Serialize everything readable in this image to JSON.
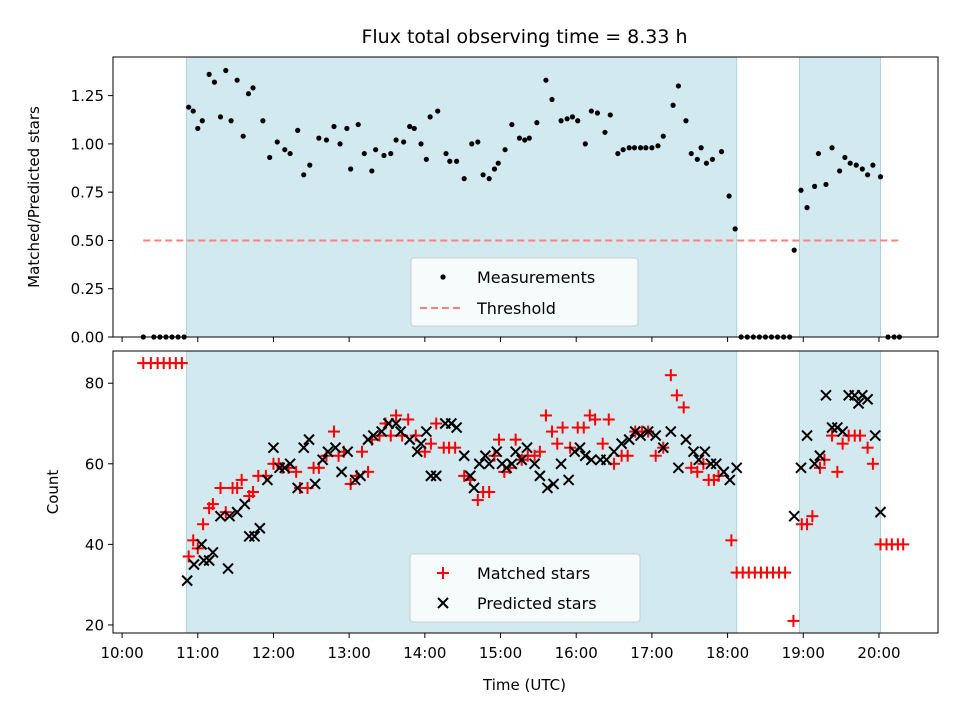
{
  "chart_data": {
    "type": "scatter",
    "title": "Flux total observing time = 8.33 h",
    "xlabel": "Time (UTC)",
    "x_ticks": [
      "10:00",
      "11:00",
      "12:00",
      "13:00",
      "14:00",
      "15:00",
      "16:00",
      "17:00",
      "18:00",
      "19:00",
      "20:00"
    ],
    "xlim_hours": [
      9.88,
      20.78
    ],
    "observing_windows_hours": [
      [
        10.85,
        18.12
      ],
      [
        18.95,
        20.02
      ]
    ],
    "window_color": "#d3e9f0",
    "top": {
      "ylabel": "Matched/Predicted stars",
      "ylim": [
        0,
        1.45
      ],
      "y_ticks": [
        "0.00",
        "0.25",
        "0.50",
        "0.75",
        "1.00",
        "1.25"
      ],
      "threshold": 0.5,
      "threshold_color": "#ff7f7f",
      "legend": {
        "position": "lower center",
        "measurements": "Measurements",
        "threshold": "Threshold"
      },
      "ratio_points": [
        [
          10.28,
          0
        ],
        [
          10.42,
          0
        ],
        [
          10.5,
          0
        ],
        [
          10.58,
          0
        ],
        [
          10.66,
          0
        ],
        [
          10.74,
          0
        ],
        [
          10.82,
          0
        ],
        [
          10.88,
          1.19
        ],
        [
          10.94,
          1.17
        ],
        [
          11.0,
          1.08
        ],
        [
          11.06,
          1.12
        ],
        [
          11.15,
          1.36
        ],
        [
          11.22,
          1.32
        ],
        [
          11.3,
          1.14
        ],
        [
          11.37,
          1.38
        ],
        [
          11.44,
          1.12
        ],
        [
          11.52,
          1.33
        ],
        [
          11.6,
          1.04
        ],
        [
          11.67,
          1.26
        ],
        [
          11.73,
          1.29
        ],
        [
          11.86,
          1.12
        ],
        [
          11.95,
          0.93
        ],
        [
          12.05,
          1.01
        ],
        [
          12.15,
          0.97
        ],
        [
          12.22,
          0.95
        ],
        [
          12.32,
          1.07
        ],
        [
          12.4,
          0.84
        ],
        [
          12.48,
          0.89
        ],
        [
          12.6,
          1.03
        ],
        [
          12.7,
          1.02
        ],
        [
          12.8,
          1.09
        ],
        [
          12.88,
          1.0
        ],
        [
          12.97,
          1.08
        ],
        [
          13.02,
          0.87
        ],
        [
          13.12,
          1.1
        ],
        [
          13.2,
          0.95
        ],
        [
          13.3,
          0.86
        ],
        [
          13.35,
          0.97
        ],
        [
          13.46,
          0.94
        ],
        [
          13.55,
          0.95
        ],
        [
          13.62,
          1.02
        ],
        [
          13.72,
          1.01
        ],
        [
          13.8,
          1.09
        ],
        [
          13.86,
          1.08
        ],
        [
          13.95,
          1.0
        ],
        [
          14.02,
          0.92
        ],
        [
          14.07,
          1.14
        ],
        [
          14.17,
          1.17
        ],
        [
          14.28,
          0.95
        ],
        [
          14.33,
          0.91
        ],
        [
          14.42,
          0.91
        ],
        [
          14.52,
          0.82
        ],
        [
          14.62,
          1.0
        ],
        [
          14.7,
          1.01
        ],
        [
          14.77,
          0.84
        ],
        [
          14.85,
          0.82
        ],
        [
          14.92,
          0.87
        ],
        [
          14.97,
          0.9
        ],
        [
          15.06,
          0.97
        ],
        [
          15.15,
          1.1
        ],
        [
          15.25,
          1.03
        ],
        [
          15.32,
          1.02
        ],
        [
          15.38,
          1.03
        ],
        [
          15.48,
          1.11
        ],
        [
          15.6,
          1.33
        ],
        [
          15.68,
          1.23
        ],
        [
          15.8,
          1.12
        ],
        [
          15.88,
          1.13
        ],
        [
          15.95,
          1.14
        ],
        [
          16.02,
          1.12
        ],
        [
          16.12,
          1.0
        ],
        [
          16.2,
          1.17
        ],
        [
          16.28,
          1.16
        ],
        [
          16.38,
          1.06
        ],
        [
          16.45,
          1.15
        ],
        [
          16.55,
          0.95
        ],
        [
          16.62,
          0.97
        ],
        [
          16.7,
          0.98
        ],
        [
          16.77,
          0.98
        ],
        [
          16.85,
          0.98
        ],
        [
          16.92,
          0.98
        ],
        [
          17.0,
          0.98
        ],
        [
          17.08,
          0.99
        ],
        [
          17.15,
          1.04
        ],
        [
          17.28,
          1.2
        ],
        [
          17.35,
          1.3
        ],
        [
          17.45,
          1.12
        ],
        [
          17.52,
          0.95
        ],
        [
          17.6,
          0.92
        ],
        [
          17.65,
          0.98
        ],
        [
          17.72,
          0.9
        ],
        [
          17.8,
          0.92
        ],
        [
          17.92,
          0.96
        ],
        [
          18.02,
          0.73
        ],
        [
          18.1,
          0.56
        ],
        [
          18.18,
          0
        ],
        [
          18.26,
          0
        ],
        [
          18.34,
          0
        ],
        [
          18.42,
          0
        ],
        [
          18.5,
          0
        ],
        [
          18.58,
          0
        ],
        [
          18.66,
          0
        ],
        [
          18.74,
          0
        ],
        [
          18.82,
          0
        ],
        [
          18.88,
          0.45
        ],
        [
          18.97,
          0.76
        ],
        [
          19.05,
          0.67
        ],
        [
          19.15,
          0.78
        ],
        [
          19.2,
          0.95
        ],
        [
          19.3,
          0.79
        ],
        [
          19.38,
          0.98
        ],
        [
          19.48,
          0.86
        ],
        [
          19.55,
          0.93
        ],
        [
          19.62,
          0.9
        ],
        [
          19.7,
          0.89
        ],
        [
          19.78,
          0.87
        ],
        [
          19.85,
          0.84
        ],
        [
          19.92,
          0.89
        ],
        [
          20.02,
          0.83
        ],
        [
          20.12,
          0
        ],
        [
          20.2,
          0
        ],
        [
          20.27,
          0
        ]
      ]
    },
    "bottom": {
      "ylabel": "Count",
      "ylim": [
        18,
        88
      ],
      "y_ticks": [
        "20",
        "40",
        "60",
        "80"
      ],
      "legend": {
        "position": "lower center",
        "matched": "Matched stars",
        "predicted": "Predicted stars"
      },
      "matched_color": "#ff0000",
      "predicted_color": "#000000",
      "matched_points": [
        [
          10.28,
          85
        ],
        [
          10.38,
          85
        ],
        [
          10.47,
          85
        ],
        [
          10.55,
          85
        ],
        [
          10.63,
          85
        ],
        [
          10.71,
          85
        ],
        [
          10.79,
          85
        ],
        [
          10.88,
          37
        ],
        [
          10.94,
          41
        ],
        [
          11.0,
          39
        ],
        [
          11.07,
          45
        ],
        [
          11.15,
          49
        ],
        [
          11.2,
          50
        ],
        [
          11.3,
          54
        ],
        [
          11.37,
          48
        ],
        [
          11.46,
          54
        ],
        [
          11.52,
          54
        ],
        [
          11.58,
          56
        ],
        [
          11.68,
          52
        ],
        [
          11.73,
          53
        ],
        [
          11.8,
          57
        ],
        [
          11.9,
          57
        ],
        [
          12.0,
          60
        ],
        [
          12.07,
          60
        ],
        [
          12.12,
          59
        ],
        [
          12.2,
          59
        ],
        [
          12.3,
          58
        ],
        [
          12.35,
          54
        ],
        [
          12.45,
          54
        ],
        [
          12.53,
          59
        ],
        [
          12.6,
          59
        ],
        [
          12.7,
          62
        ],
        [
          12.8,
          68
        ],
        [
          12.86,
          62
        ],
        [
          12.93,
          63
        ],
        [
          13.02,
          55
        ],
        [
          13.1,
          57
        ],
        [
          13.17,
          63
        ],
        [
          13.25,
          58
        ],
        [
          13.3,
          66
        ],
        [
          13.4,
          67
        ],
        [
          13.48,
          70
        ],
        [
          13.55,
          67
        ],
        [
          13.62,
          72
        ],
        [
          13.7,
          67
        ],
        [
          13.78,
          71
        ],
        [
          13.88,
          67
        ],
        [
          14.0,
          63
        ],
        [
          14.08,
          65
        ],
        [
          14.15,
          70
        ],
        [
          14.25,
          64
        ],
        [
          14.32,
          64
        ],
        [
          14.4,
          64
        ],
        [
          14.52,
          57
        ],
        [
          14.6,
          56
        ],
        [
          14.7,
          51
        ],
        [
          14.77,
          53
        ],
        [
          14.85,
          53
        ],
        [
          14.92,
          62
        ],
        [
          14.98,
          66
        ],
        [
          15.05,
          58
        ],
        [
          15.12,
          59
        ],
        [
          15.2,
          66
        ],
        [
          15.28,
          61
        ],
        [
          15.36,
          62
        ],
        [
          15.45,
          62
        ],
        [
          15.52,
          63
        ],
        [
          15.6,
          72
        ],
        [
          15.68,
          68
        ],
        [
          15.75,
          65
        ],
        [
          15.82,
          69
        ],
        [
          15.92,
          64
        ],
        [
          16.02,
          69
        ],
        [
          16.1,
          69
        ],
        [
          16.18,
          72
        ],
        [
          16.25,
          71
        ],
        [
          16.35,
          65
        ],
        [
          16.43,
          71
        ],
        [
          16.5,
          60
        ],
        [
          16.6,
          62
        ],
        [
          16.68,
          62
        ],
        [
          16.78,
          68
        ],
        [
          16.87,
          68
        ],
        [
          16.95,
          68
        ],
        [
          17.05,
          62
        ],
        [
          17.15,
          64
        ],
        [
          17.25,
          82
        ],
        [
          17.33,
          77
        ],
        [
          17.42,
          74
        ],
        [
          17.52,
          59
        ],
        [
          17.6,
          58
        ],
        [
          17.68,
          60
        ],
        [
          17.75,
          56
        ],
        [
          17.82,
          56
        ],
        [
          17.88,
          57
        ],
        [
          18.05,
          41
        ],
        [
          18.12,
          33
        ],
        [
          18.2,
          33
        ],
        [
          18.28,
          33
        ],
        [
          18.36,
          33
        ],
        [
          18.44,
          33
        ],
        [
          18.52,
          33
        ],
        [
          18.6,
          33
        ],
        [
          18.68,
          33
        ],
        [
          18.76,
          33
        ],
        [
          18.87,
          21
        ],
        [
          18.98,
          45
        ],
        [
          19.05,
          45
        ],
        [
          19.12,
          47
        ],
        [
          19.22,
          59
        ],
        [
          19.28,
          61
        ],
        [
          19.38,
          67
        ],
        [
          19.45,
          58
        ],
        [
          19.52,
          65
        ],
        [
          19.6,
          67
        ],
        [
          19.68,
          67
        ],
        [
          19.75,
          67
        ],
        [
          19.85,
          64
        ],
        [
          19.92,
          60
        ],
        [
          20.02,
          40
        ],
        [
          20.1,
          40
        ],
        [
          20.17,
          40
        ],
        [
          20.25,
          40
        ],
        [
          20.32,
          40
        ]
      ],
      "predicted_points": [
        [
          10.86,
          31
        ],
        [
          10.95,
          35
        ],
        [
          11.05,
          40
        ],
        [
          11.08,
          36
        ],
        [
          11.15,
          36
        ],
        [
          11.2,
          38
        ],
        [
          11.3,
          47
        ],
        [
          11.4,
          34
        ],
        [
          11.42,
          47
        ],
        [
          11.52,
          48
        ],
        [
          11.62,
          50
        ],
        [
          11.68,
          42
        ],
        [
          11.75,
          42
        ],
        [
          11.82,
          44
        ],
        [
          11.92,
          56
        ],
        [
          12.0,
          64
        ],
        [
          12.08,
          59
        ],
        [
          12.15,
          59
        ],
        [
          12.22,
          60
        ],
        [
          12.32,
          54
        ],
        [
          12.4,
          64
        ],
        [
          12.47,
          66
        ],
        [
          12.55,
          55
        ],
        [
          12.65,
          61
        ],
        [
          12.72,
          63
        ],
        [
          12.82,
          64
        ],
        [
          12.9,
          58
        ],
        [
          12.98,
          63
        ],
        [
          13.08,
          56
        ],
        [
          13.15,
          57
        ],
        [
          13.25,
          66
        ],
        [
          13.32,
          67
        ],
        [
          13.43,
          68
        ],
        [
          13.52,
          70
        ],
        [
          13.62,
          70
        ],
        [
          13.68,
          68
        ],
        [
          13.8,
          66
        ],
        [
          13.9,
          63
        ],
        [
          13.95,
          65
        ],
        [
          14.02,
          68
        ],
        [
          14.08,
          57
        ],
        [
          14.15,
          57
        ],
        [
          14.27,
          70
        ],
        [
          14.35,
          70
        ],
        [
          14.42,
          69
        ],
        [
          14.52,
          62
        ],
        [
          14.6,
          57
        ],
        [
          14.65,
          54
        ],
        [
          14.72,
          60
        ],
        [
          14.8,
          62
        ],
        [
          14.85,
          60
        ],
        [
          14.95,
          63
        ],
        [
          15.02,
          60
        ],
        [
          15.08,
          59
        ],
        [
          15.15,
          60
        ],
        [
          15.2,
          63
        ],
        [
          15.28,
          61
        ],
        [
          15.35,
          64
        ],
        [
          15.45,
          60
        ],
        [
          15.52,
          57
        ],
        [
          15.62,
          54
        ],
        [
          15.7,
          55
        ],
        [
          15.8,
          60
        ],
        [
          15.9,
          56
        ],
        [
          15.98,
          63
        ],
        [
          16.05,
          64
        ],
        [
          16.12,
          62
        ],
        [
          16.2,
          61
        ],
        [
          16.32,
          61
        ],
        [
          16.4,
          61
        ],
        [
          16.5,
          63
        ],
        [
          16.6,
          65
        ],
        [
          16.7,
          66
        ],
        [
          16.78,
          68
        ],
        [
          16.85,
          67
        ],
        [
          16.95,
          68
        ],
        [
          17.05,
          67
        ],
        [
          17.15,
          64
        ],
        [
          17.25,
          68
        ],
        [
          17.35,
          59
        ],
        [
          17.45,
          66
        ],
        [
          17.55,
          63
        ],
        [
          17.62,
          61
        ],
        [
          17.7,
          63
        ],
        [
          17.78,
          60
        ],
        [
          17.85,
          60
        ],
        [
          17.95,
          58
        ],
        [
          18.03,
          56
        ],
        [
          18.12,
          59
        ],
        [
          18.88,
          47
        ],
        [
          18.97,
          59
        ],
        [
          19.05,
          67
        ],
        [
          19.15,
          60
        ],
        [
          19.22,
          62
        ],
        [
          19.3,
          77
        ],
        [
          19.38,
          69
        ],
        [
          19.45,
          69
        ],
        [
          19.52,
          68
        ],
        [
          19.6,
          77
        ],
        [
          19.68,
          77
        ],
        [
          19.73,
          75
        ],
        [
          19.78,
          77
        ],
        [
          19.85,
          76
        ],
        [
          19.95,
          67
        ],
        [
          20.02,
          48
        ]
      ]
    }
  }
}
